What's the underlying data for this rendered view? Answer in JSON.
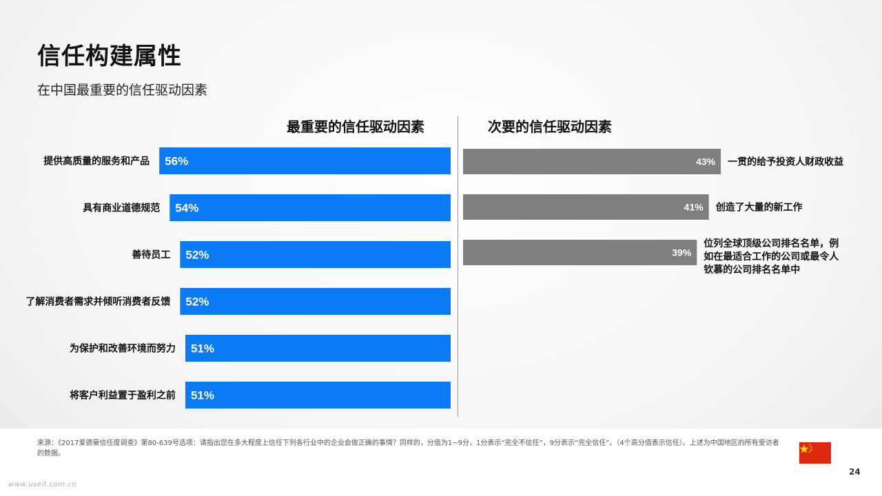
{
  "header": {
    "title": "信任构建属性",
    "subtitle": "在中国最重要的信任驱动因素"
  },
  "chart_data": [
    {
      "type": "bar",
      "orientation": "horizontal",
      "title": "最重要的信任驱动因素",
      "categories": [
        "提供高质量的服务和产品",
        "具有商业道德规范",
        "善待员工",
        "了解消费者需求并倾听消费者反馈",
        "为保护和改善环境而努力",
        "将客户利益置于盈利之前"
      ],
      "values": [
        56,
        54,
        52,
        52,
        51,
        51
      ],
      "value_labels": [
        "56%",
        "54%",
        "52%",
        "52%",
        "51%",
        "51%"
      ],
      "color": "#0a7af5"
    },
    {
      "type": "bar",
      "orientation": "horizontal",
      "title": "次要的信任驱动因素",
      "categories": [
        "一贯的给予投资人财政收益",
        "创造了大量的新工作",
        "位列全球顶级公司排名名单，例如在最适合工作的公司或最令人钦慕的公司排名名单中"
      ],
      "category_lines": [
        [
          "一贯的给予投资人财政收益"
        ],
        [
          "创造了大量的新工作"
        ],
        [
          "位列全球顶级公司排名名单，例",
          "如在最适合工作的公司或最令人",
          "钦慕的公司排名名单中"
        ]
      ],
      "values": [
        43,
        41,
        39
      ],
      "value_labels": [
        "43%",
        "41%",
        "39%"
      ],
      "color": "#7f7f7f"
    }
  ],
  "footer": {
    "source": "来源：《2017爱德曼信任度调查》第80-639号选项：请指出您在多大程度上信任下列各行业中的企业会做正确的事情？同样的，分值为1~9分，1分表示“完全不信任”，9分表示“完全信任”。（4个高分值表示信任）。上述为中国地区的所有受访者的数据。",
    "page_number": "24",
    "watermark": "www.useit.com.cn",
    "flag_icon": "china-flag-icon",
    "flag_color": "#de2910",
    "star_color": "#ffde00"
  }
}
